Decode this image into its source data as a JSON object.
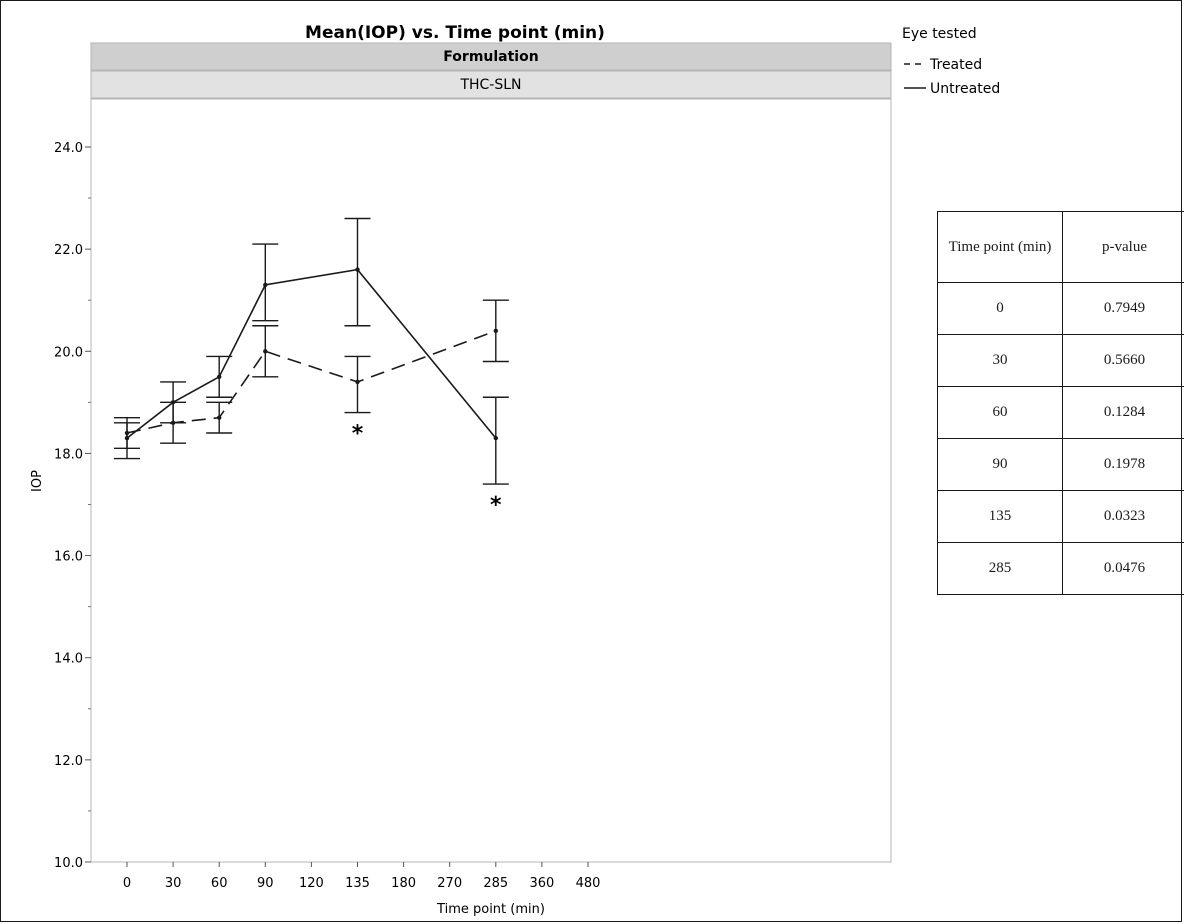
{
  "chart_data": {
    "type": "line",
    "title": "Mean(IOP) vs. Time point (min)",
    "panel_header": "Formulation",
    "panel_label": "THC-SLN",
    "xlabel": "Time point (min)",
    "ylabel": "IOP",
    "categories": [
      "0",
      "30",
      "60",
      "90",
      "120",
      "135",
      "180",
      "270",
      "285",
      "360",
      "480"
    ],
    "ylim": [
      10.0,
      25.0
    ],
    "yticks": [
      "10.0",
      "12.0",
      "14.0",
      "16.0",
      "18.0",
      "20.0",
      "22.0",
      "24.0"
    ],
    "legend": {
      "title": "Eye tested",
      "placement": "top-right",
      "entries": [
        "Treated",
        "Untreated"
      ]
    },
    "series": [
      {
        "name": "Treated",
        "style": "dashed",
        "points": [
          {
            "x": "0",
            "y": 18.4,
            "low": 18.1,
            "high": 18.6
          },
          {
            "x": "30",
            "y": 18.6,
            "low": 18.2,
            "high": 19.0
          },
          {
            "x": "60",
            "y": 18.7,
            "low": 18.4,
            "high": 19.0
          },
          {
            "x": "90",
            "y": 20.0,
            "low": 19.5,
            "high": 20.5
          },
          {
            "x": "135",
            "y": 19.4,
            "low": 18.8,
            "high": 19.9
          },
          {
            "x": "285",
            "y": 20.4,
            "low": 19.8,
            "high": 21.0
          }
        ]
      },
      {
        "name": "Untreated",
        "style": "solid",
        "points": [
          {
            "x": "0",
            "y": 18.3,
            "low": 17.9,
            "high": 18.7
          },
          {
            "x": "30",
            "y": 19.0,
            "low": 18.6,
            "high": 19.4
          },
          {
            "x": "60",
            "y": 19.5,
            "low": 19.1,
            "high": 19.9
          },
          {
            "x": "90",
            "y": 21.3,
            "low": 20.6,
            "high": 22.1
          },
          {
            "x": "135",
            "y": 21.6,
            "low": 20.5,
            "high": 22.6
          },
          {
            "x": "285",
            "y": 18.3,
            "low": 17.4,
            "high": 19.1
          }
        ]
      }
    ],
    "annotations": [
      {
        "x": "135",
        "text": "*",
        "below_y": 18.8
      },
      {
        "x": "285",
        "text": "*",
        "below_y": 17.4
      }
    ]
  },
  "table": {
    "headers": [
      "Time point (min)",
      "p-value"
    ],
    "rows": [
      [
        "0",
        "0.7949"
      ],
      [
        "30",
        "0.5660"
      ],
      [
        "60",
        "0.1284"
      ],
      [
        "90",
        "0.1978"
      ],
      [
        "135",
        "0.0323"
      ],
      [
        "285",
        "0.0476"
      ]
    ]
  }
}
